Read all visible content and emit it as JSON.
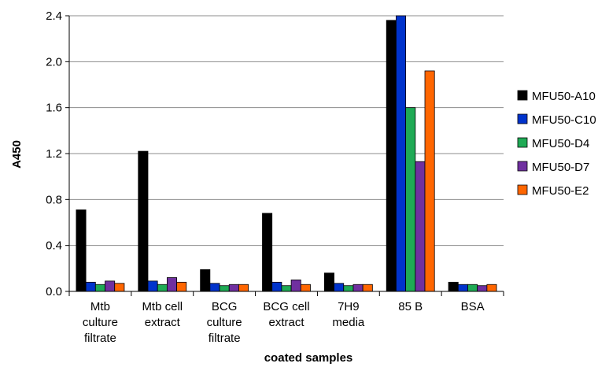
{
  "chart_data": {
    "type": "bar",
    "title": "",
    "xlabel": "coated samples",
    "ylabel": "A450",
    "ylim": [
      0,
      2.4
    ],
    "yticks": [
      "0.0",
      "0.4",
      "0.8",
      "1.2",
      "1.6",
      "2.0",
      "2.4"
    ],
    "grid": true,
    "legend_position": "right",
    "categories": [
      [
        "Mtb",
        "culture",
        "filtrate"
      ],
      [
        "Mtb cell",
        "extract"
      ],
      [
        "BCG",
        "culture",
        "filtrate"
      ],
      [
        "BCG cell",
        "extract"
      ],
      [
        "7H9",
        "media"
      ],
      [
        "85 B"
      ],
      [
        "BSA"
      ]
    ],
    "series": [
      {
        "name": "MFU50-A10",
        "color": "#000000",
        "values": [
          0.71,
          1.22,
          0.19,
          0.68,
          0.16,
          2.36,
          0.08
        ]
      },
      {
        "name": "MFU50-C10",
        "color": "#0033cc",
        "values": [
          0.08,
          0.09,
          0.07,
          0.08,
          0.07,
          2.4,
          0.06
        ]
      },
      {
        "name": "MFU50-D4",
        "color": "#1faa55",
        "values": [
          0.06,
          0.06,
          0.05,
          0.05,
          0.05,
          1.6,
          0.06
        ]
      },
      {
        "name": "MFU50-D7",
        "color": "#7030a0",
        "values": [
          0.09,
          0.12,
          0.06,
          0.1,
          0.06,
          1.13,
          0.05
        ]
      },
      {
        "name": "MFU50-E2",
        "color": "#ff6600",
        "values": [
          0.07,
          0.08,
          0.06,
          0.06,
          0.06,
          1.92,
          0.06
        ]
      }
    ]
  }
}
